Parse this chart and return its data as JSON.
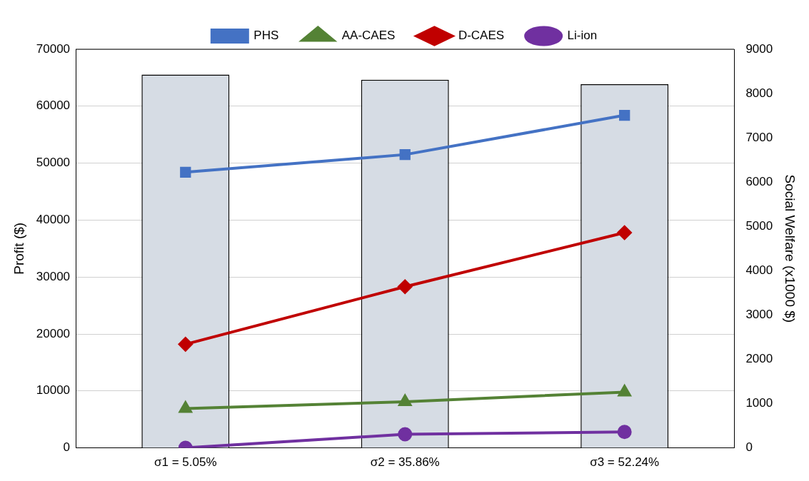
{
  "chart_data": {
    "type": "line",
    "categories": [
      "σ1 = 5.05%",
      "σ2 = 35.86%",
      "σ3 = 52.24%"
    ],
    "ylabel": "Profit ($)",
    "y2label": "Social Welfare (x1000 $)",
    "series": [
      {
        "type": "bar",
        "axis": "y2",
        "color": "#d6dce4",
        "values": [
          8430,
          8310,
          8210
        ]
      },
      {
        "name": "PHS",
        "color": "#4472c4",
        "marker": "square",
        "values": [
          48400,
          51500,
          58400
        ]
      },
      {
        "name": "AA-CAES",
        "color": "#548235",
        "marker": "triangle",
        "values": [
          6900,
          8100,
          9800
        ]
      },
      {
        "name": "D-CAES",
        "color": "#c00000",
        "marker": "diamond",
        "values": [
          18200,
          28300,
          37800
        ]
      },
      {
        "name": "Li-ion",
        "color": "#7030a0",
        "marker": "circle",
        "values": [
          0,
          2400,
          2800
        ]
      }
    ],
    "ylim": [
      0,
      70000
    ],
    "yticks": [
      0,
      10000,
      20000,
      30000,
      40000,
      50000,
      60000,
      70000
    ],
    "y2lim": [
      0,
      9000
    ],
    "y2ticks": [
      0,
      1000,
      2000,
      3000,
      4000,
      5000,
      6000,
      7000,
      8000,
      9000
    ],
    "grid": "y",
    "legend": "top"
  }
}
